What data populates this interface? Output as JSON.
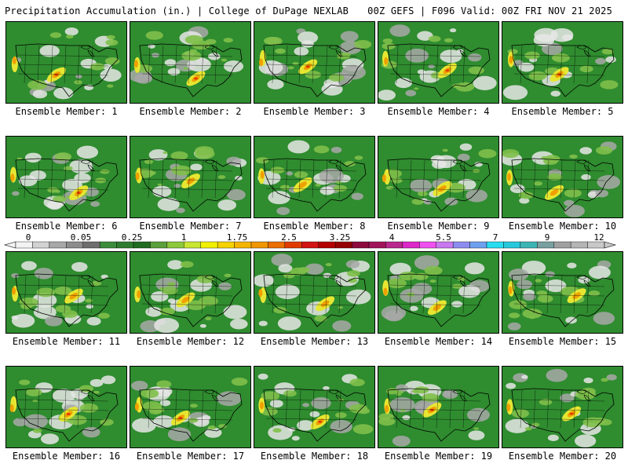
{
  "header": {
    "title_left": "Precipitation Accumulation (in.) | College of DuPage NEXLAB",
    "title_right": "00Z GEFS | F096 Valid: 00Z FRI NOV 21 2025"
  },
  "panels": [
    {
      "label": "Ensemble Member: 1"
    },
    {
      "label": "Ensemble Member: 2"
    },
    {
      "label": "Ensemble Member: 3"
    },
    {
      "label": "Ensemble Member: 4"
    },
    {
      "label": "Ensemble Member: 5"
    },
    {
      "label": "Ensemble Member: 6"
    },
    {
      "label": "Ensemble Member: 7"
    },
    {
      "label": "Ensemble Member: 8"
    },
    {
      "label": "Ensemble Member: 9"
    },
    {
      "label": "Ensemble Member: 10"
    },
    {
      "label": "Ensemble Member: 11"
    },
    {
      "label": "Ensemble Member: 12"
    },
    {
      "label": "Ensemble Member: 13"
    },
    {
      "label": "Ensemble Member: 14"
    },
    {
      "label": "Ensemble Member: 15"
    },
    {
      "label": "Ensemble Member: 16"
    },
    {
      "label": "Ensemble Member: 17"
    },
    {
      "label": "Ensemble Member: 18"
    },
    {
      "label": "Ensemble Member: 19"
    },
    {
      "label": "Ensemble Member: 20"
    }
  ],
  "colorbar": {
    "labels": [
      "0",
      "0.05",
      "0.25",
      "1",
      "1.75",
      "2.5",
      "3.25",
      "4",
      "5.5",
      "7",
      "9",
      "12"
    ],
    "colors": [
      "#f2f2f2",
      "#d2d2d2",
      "#a8a8a8",
      "#8c8c8c",
      "#6e6e6e",
      "#3c8c3c",
      "#2e7d2e",
      "#1f6b1f",
      "#5aa03c",
      "#8cc83c",
      "#c8e632",
      "#f0f000",
      "#f5d200",
      "#f5b400",
      "#f09600",
      "#eb6e00",
      "#e13c00",
      "#d21414",
      "#b40000",
      "#960000",
      "#8c0a3c",
      "#a0145a",
      "#b9288c",
      "#dc28c8",
      "#f050f0",
      "#c878f0",
      "#8c8cf0",
      "#6ea0f0",
      "#28dcf0",
      "#28c8dc",
      "#3cb4b4",
      "#78a0a0",
      "#a0a0a0",
      "#b4b4b4",
      "#c8c8c8"
    ]
  }
}
